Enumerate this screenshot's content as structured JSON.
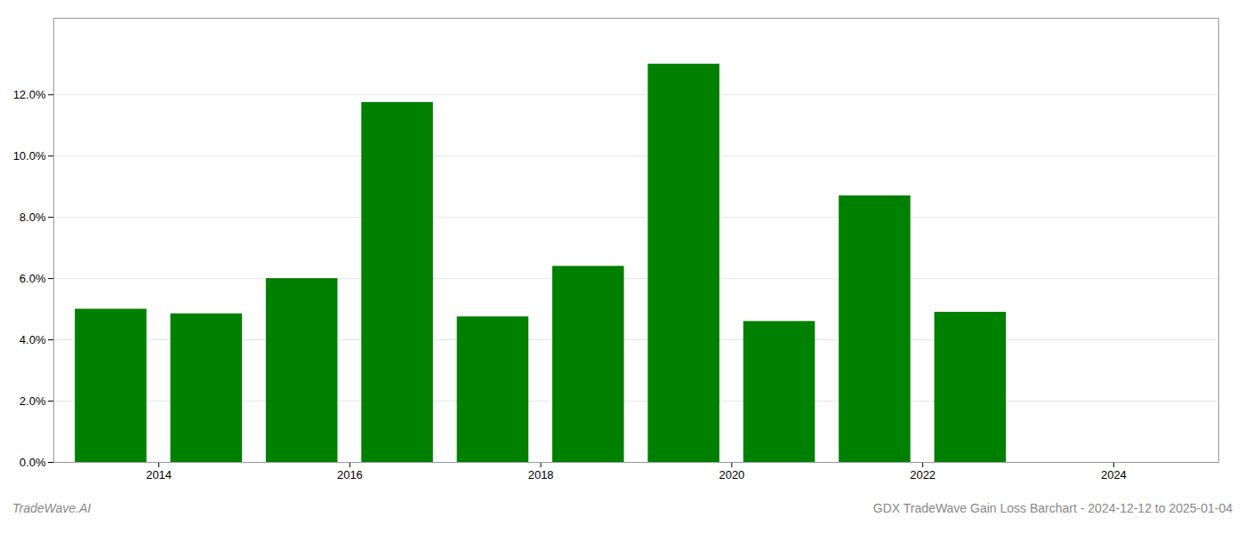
{
  "chart_data": {
    "type": "bar",
    "x": [
      2013,
      2014,
      2015,
      2016,
      2017,
      2018,
      2019,
      2020,
      2021,
      2022,
      2023
    ],
    "values": [
      0.05,
      0.0485,
      0.06,
      0.1175,
      0.0475,
      0.064,
      0.13,
      0.046,
      0.087,
      0.049,
      0.0
    ],
    "color": "#008000",
    "xlim": [
      2012.4,
      2024.6
    ],
    "xticks": [
      {
        "value": 2013.5,
        "label": "2014"
      },
      {
        "value": 2015.5,
        "label": "2016"
      },
      {
        "value": 2017.5,
        "label": "2018"
      },
      {
        "value": 2019.5,
        "label": "2020"
      },
      {
        "value": 2021.5,
        "label": "2022"
      },
      {
        "value": 2023.5,
        "label": "2024"
      }
    ],
    "ylim": [
      0,
      0.145
    ],
    "yticks": [
      {
        "value": 0.0,
        "label": "0.0%"
      },
      {
        "value": 0.02,
        "label": "2.0%"
      },
      {
        "value": 0.04,
        "label": "4.0%"
      },
      {
        "value": 0.06,
        "label": "6.0%"
      },
      {
        "value": 0.08,
        "label": "8.0%"
      },
      {
        "value": 0.1,
        "label": "10.0%"
      },
      {
        "value": 0.12,
        "label": "12.0%"
      }
    ],
    "grid": true,
    "annotations": [
      "TradeWave.AI",
      "GDX TradeWave Gain Loss Barchart - 2024-12-12 to 2025-01-04"
    ]
  }
}
